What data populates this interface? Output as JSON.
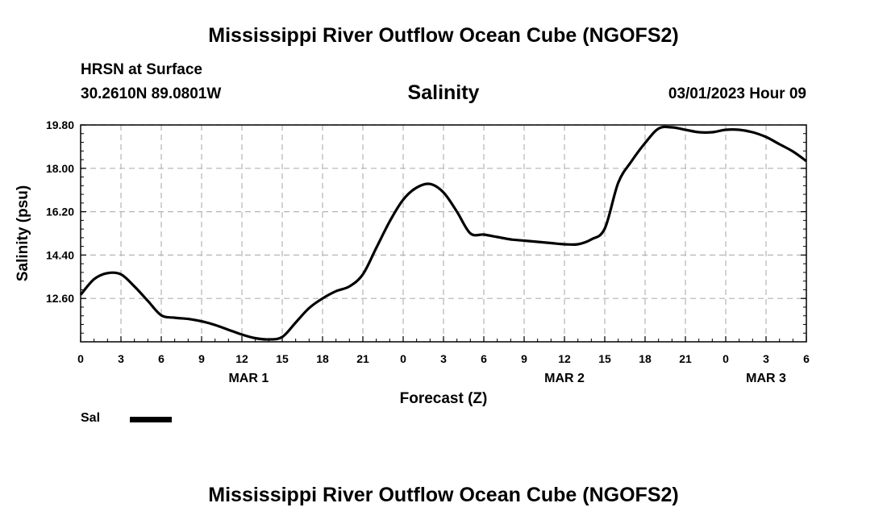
{
  "header": {
    "title": "Mississippi River Outflow Ocean Cube (NGOFS2)",
    "station": "HRSN at Surface",
    "location": "30.2610N  89.0801W",
    "variable": "Salinity",
    "datetime": "03/01/2023 Hour 09"
  },
  "footer": {
    "title": "Mississippi River Outflow Ocean Cube (NGOFS2)"
  },
  "legend": {
    "label": "Sal",
    "color": "#000000"
  },
  "colors": {
    "line": "#000000",
    "grid": "#b4b4b4",
    "background": "#ffffff"
  },
  "chart_data": {
    "type": "line",
    "title": "Salinity",
    "xlabel": "Forecast (Z)",
    "ylabel": "Salinity (psu)",
    "xlim": [
      0,
      54
    ],
    "ylim": [
      10.8,
      19.8
    ],
    "yticks": [
      19.8,
      18.0,
      16.2,
      14.4,
      12.6
    ],
    "ytick_labels": [
      "19.80",
      "18.00",
      "16.20",
      "14.40",
      "12.60"
    ],
    "grid": true,
    "xticks": [
      0,
      3,
      6,
      9,
      12,
      15,
      18,
      21,
      24,
      27,
      30,
      33,
      36,
      39,
      42,
      45,
      48,
      51,
      54
    ],
    "xtick_labels": [
      "0",
      "3",
      "6",
      "9",
      "12",
      "15",
      "18",
      "21",
      "0",
      "3",
      "6",
      "9",
      "12",
      "15",
      "18",
      "21",
      "0",
      "3",
      "6"
    ],
    "date_labels": [
      {
        "x": 12.5,
        "label": "MAR 1"
      },
      {
        "x": 36,
        "label": "MAR 2"
      },
      {
        "x": 51,
        "label": "MAR 3"
      }
    ],
    "series": [
      {
        "name": "Sal",
        "x": [
          0,
          1,
          2,
          3,
          4,
          5,
          6,
          7,
          8,
          9,
          10,
          11,
          12,
          13,
          14,
          15,
          16,
          17,
          18,
          19,
          20,
          21,
          22,
          23,
          24,
          25,
          26,
          27,
          28,
          29,
          30,
          31,
          32,
          33,
          34,
          35,
          36,
          37,
          38,
          39,
          40,
          41,
          42,
          43,
          44,
          45,
          46,
          47,
          48,
          49,
          50,
          51,
          52,
          53,
          54
        ],
        "values": [
          12.75,
          13.4,
          13.65,
          13.6,
          13.1,
          12.5,
          11.9,
          11.8,
          11.75,
          11.65,
          11.5,
          11.3,
          11.1,
          10.95,
          10.9,
          11.0,
          11.6,
          12.2,
          12.6,
          12.9,
          13.1,
          13.6,
          14.7,
          15.8,
          16.7,
          17.2,
          17.35,
          17.0,
          16.2,
          15.3,
          15.25,
          15.15,
          15.05,
          15.0,
          14.95,
          14.9,
          14.85,
          14.85,
          15.05,
          15.5,
          17.4,
          18.3,
          19.05,
          19.65,
          19.7,
          19.6,
          19.5,
          19.5,
          19.6,
          19.6,
          19.5,
          19.3,
          19.0,
          18.7,
          18.3
        ]
      }
    ]
  }
}
